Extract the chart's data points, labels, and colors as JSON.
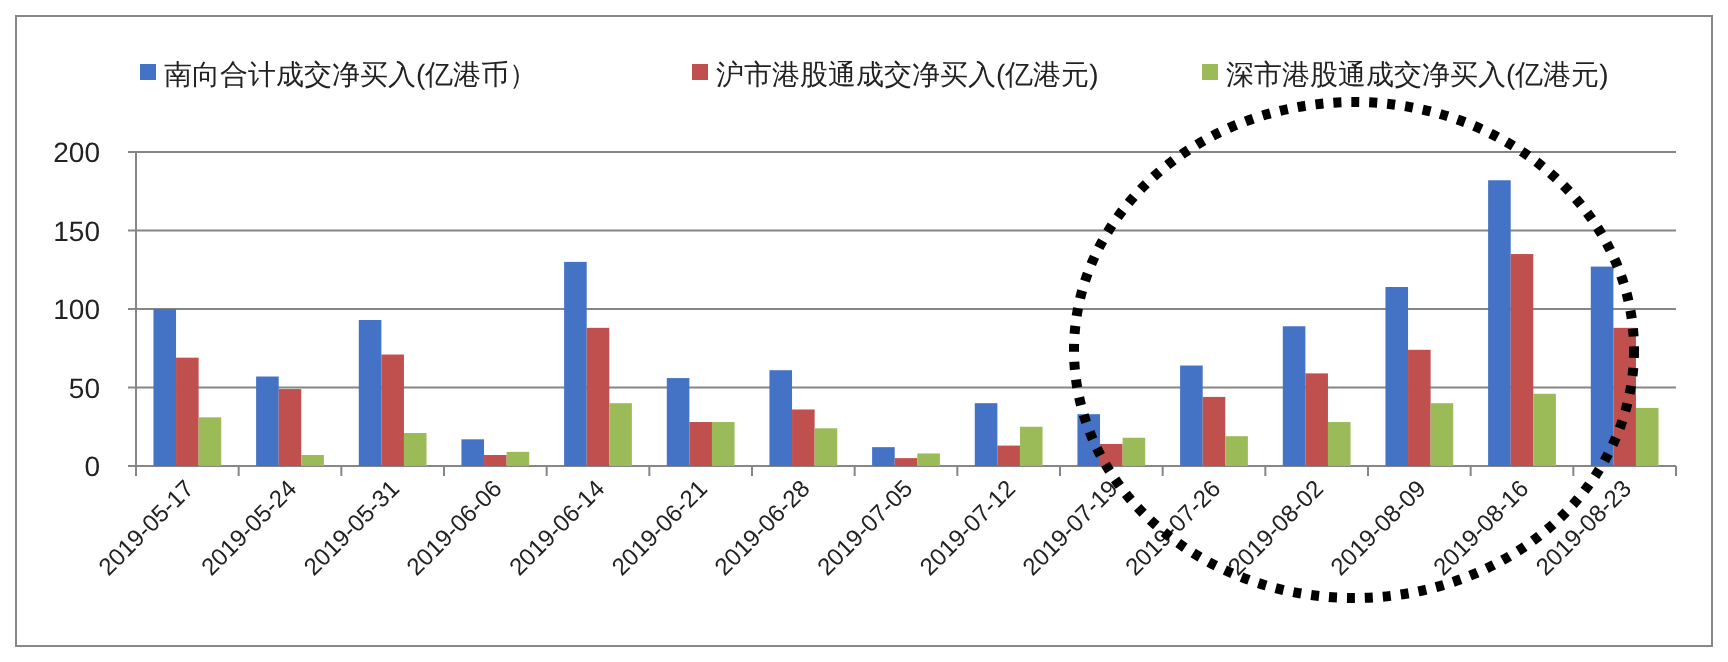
{
  "chart_data": {
    "type": "bar",
    "categories": [
      "2019-05-17",
      "2019-05-24",
      "2019-05-31",
      "2019-06-06",
      "2019-06-14",
      "2019-06-21",
      "2019-06-28",
      "2019-07-05",
      "2019-07-12",
      "2019-07-19",
      "2019-07-26",
      "2019-08-02",
      "2019-08-09",
      "2019-08-16",
      "2019-08-23"
    ],
    "series": [
      {
        "name": "南向合计成交净买入(亿港币）",
        "color": "#4472c4",
        "values": [
          100,
          57,
          93,
          17,
          130,
          56,
          61,
          12,
          40,
          33,
          64,
          89,
          114,
          182,
          127
        ]
      },
      {
        "name": "沪市港股通成交净买入(亿港元)",
        "color": "#c0504d",
        "values": [
          69,
          49,
          71,
          7,
          88,
          28,
          36,
          5,
          13,
          14,
          44,
          59,
          74,
          135,
          88
        ]
      },
      {
        "name": "深市港股通成交净买入(亿港元)",
        "color": "#9bbb59",
        "values": [
          31,
          7,
          21,
          9,
          40,
          28,
          24,
          8,
          25,
          18,
          19,
          28,
          40,
          46,
          37
        ]
      }
    ],
    "ylim": [
      0,
      200
    ],
    "yticks": [
      0,
      50,
      100,
      150,
      200
    ],
    "grid": "y",
    "legend": "top"
  }
}
